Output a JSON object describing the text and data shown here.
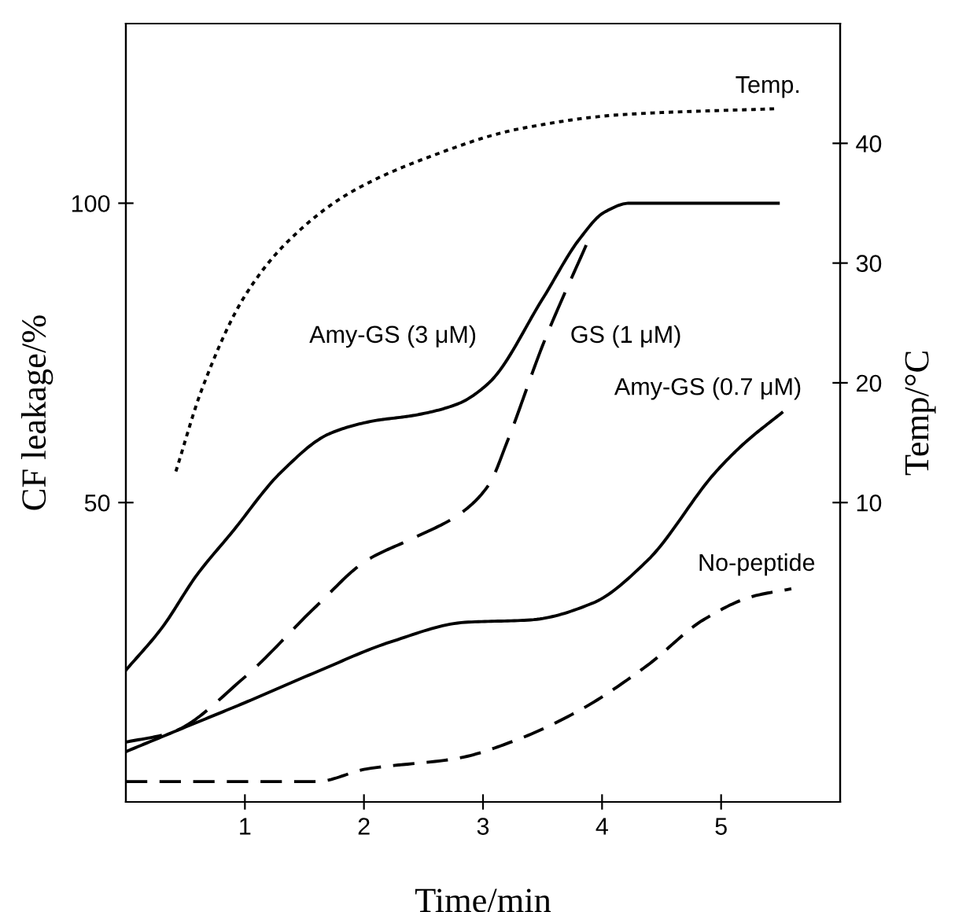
{
  "chart_data": {
    "type": "line",
    "xlabel": "Time/min",
    "ylabel": "CF leakage/%",
    "y2label": "Temp/°C",
    "xlim": [
      0,
      6
    ],
    "xticks": [
      1,
      2,
      3,
      4,
      5
    ],
    "ylim": [
      0,
      130
    ],
    "yticks": [
      50,
      100
    ],
    "y2lim": [
      -15,
      50
    ],
    "y2ticks": [
      10,
      20,
      30,
      40
    ],
    "grid": false,
    "legend": false,
    "series": [
      {
        "name": "Amy-GS (3 μM)",
        "color": "#000000",
        "line_style": "solid",
        "x": [
          0,
          0.3,
          0.6,
          0.89,
          1.3,
          1.71,
          2.07,
          2.43,
          2.79,
          3.05,
          3.5,
          3.81,
          4.02,
          4.23,
          5.48
        ],
        "values": [
          22,
          29,
          38,
          45,
          55,
          61.5,
          63.6,
          64.6,
          66.5,
          70,
          84,
          94,
          98.5,
          100,
          100
        ]
      },
      {
        "name": "GS (1 μM)",
        "color": "#000000",
        "line_style": "dashed",
        "x": [
          0,
          0.37,
          0.99,
          1.6,
          2.02,
          2.43,
          2.79,
          3.05,
          3.2,
          3.51,
          3.9
        ],
        "values": [
          10,
          11.5,
          20.7,
          32.7,
          40.3,
          44.2,
          47.9,
          53,
          60,
          76.7,
          94.5
        ]
      },
      {
        "name": "Amy-GS (0.7 μM)",
        "color": "#000000",
        "line_style": "solid",
        "x": [
          0,
          0.5,
          0.99,
          1.6,
          2.22,
          2.85,
          3.4,
          3.92,
          4.38,
          4.95,
          5.2,
          5.51
        ],
        "values": [
          8.4,
          12.5,
          16.5,
          21.7,
          26.7,
          30,
          30.4,
          33.2,
          40.3,
          55,
          60,
          65
        ]
      },
      {
        "name": "No-peptide",
        "color": "#000000",
        "line_style": "dashed",
        "x": [
          0,
          1.6,
          2.02,
          2.79,
          3.3,
          3.82,
          4.38,
          4.85,
          5.26,
          5.59
        ],
        "values": [
          3.4,
          3.4,
          5.5,
          7.3,
          10.5,
          15.4,
          22.8,
          30.4,
          34.3,
          35.6
        ]
      },
      {
        "name": "Temp.",
        "color": "#000000",
        "line_style": "dotted",
        "axis": "y2",
        "x": [
          0.42,
          0.64,
          0.99,
          1.35,
          1.87,
          2.53,
          3.3,
          4.17,
          5.48
        ],
        "values": [
          12.6,
          19.5,
          27.1,
          31.7,
          35.8,
          38.8,
          41.2,
          42.4,
          42.9
        ]
      }
    ]
  }
}
